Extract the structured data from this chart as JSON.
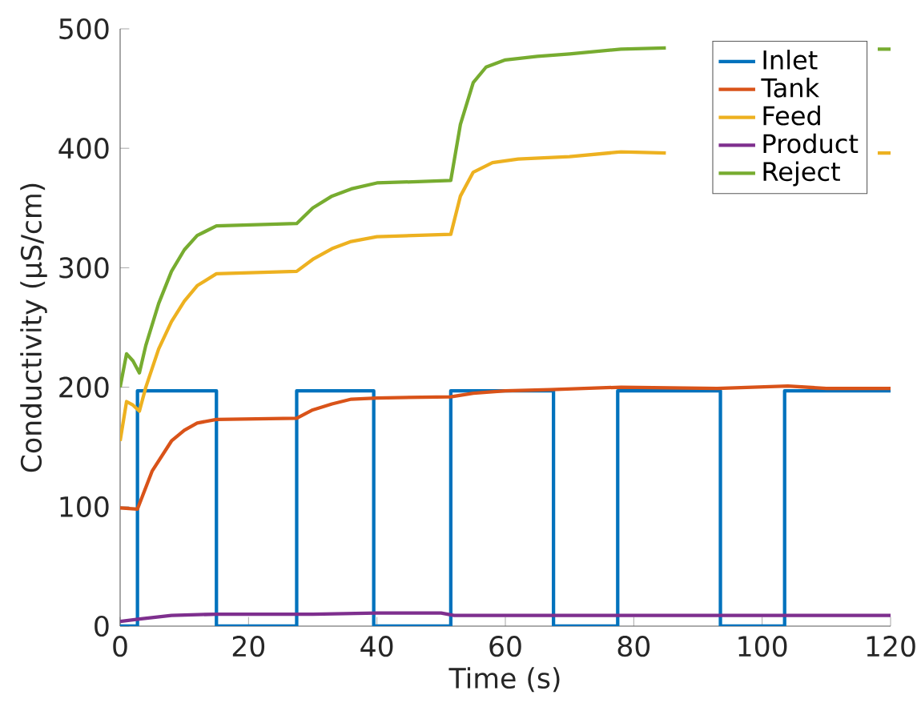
{
  "chart_data": {
    "type": "line",
    "xlabel": "Time (s)",
    "ylabel": "Conductivity (μS/cm)",
    "xlim": [
      0,
      120
    ],
    "ylim": [
      0,
      500
    ],
    "xticks": [
      0,
      20,
      40,
      60,
      80,
      100,
      120
    ],
    "yticks": [
      0,
      100,
      200,
      300,
      400,
      500
    ],
    "legend": "top right",
    "grid": false,
    "series": [
      {
        "name": "Inlet",
        "color": "#0072bd",
        "x": [
          0,
          2.7,
          2.7,
          15,
          15,
          27.5,
          27.5,
          39.5,
          39.5,
          51.5,
          51.5,
          67.5,
          67.5,
          77.5,
          77.5,
          93.5,
          93.5,
          103.5,
          103.5,
          120
        ],
        "values": [
          0,
          0,
          197,
          197,
          0,
          0,
          197,
          197,
          0,
          0,
          197,
          197,
          0,
          0,
          197,
          197,
          0,
          0,
          197,
          197
        ]
      },
      {
        "name": "Tank",
        "color": "#d95319",
        "x": [
          0,
          2.7,
          5,
          8,
          10,
          12,
          15,
          27.5,
          30,
          33,
          36,
          40,
          51.5,
          55,
          60,
          67,
          78,
          93,
          104,
          110,
          120
        ],
        "values": [
          99,
          98,
          130,
          155,
          164,
          170,
          173,
          174,
          181,
          186,
          190,
          191,
          192,
          195,
          197,
          198,
          200,
          199,
          201,
          199,
          199
        ]
      },
      {
        "name": "Feed",
        "color": "#edb120",
        "x": [
          0,
          1,
          2,
          3,
          4,
          6,
          8,
          10,
          12,
          15,
          27.5,
          30,
          33,
          36,
          40,
          51.5,
          53,
          55,
          58,
          62,
          70,
          78,
          85,
          93,
          100,
          110,
          118,
          120
        ],
        "values": [
          155,
          188,
          185,
          180,
          200,
          232,
          255,
          272,
          285,
          295,
          297,
          307,
          316,
          322,
          326,
          328,
          360,
          380,
          388,
          391,
          393,
          397,
          396,
          null,
          null,
          null,
          396,
          396
        ]
      },
      {
        "name": "Product",
        "color": "#7e2f8e",
        "x": [
          0,
          3,
          8,
          15,
          30,
          40,
          50,
          52,
          60,
          120
        ],
        "values": [
          4,
          6,
          9,
          10,
          10,
          11,
          11,
          9,
          9,
          9
        ]
      },
      {
        "name": "Reject",
        "color": "#77ac30",
        "x": [
          0,
          1,
          2,
          3,
          4,
          6,
          8,
          10,
          12,
          15,
          27.5,
          30,
          33,
          36,
          40,
          51.5,
          53,
          55,
          57,
          60,
          65,
          70,
          78,
          85,
          93,
          100,
          104,
          110,
          118,
          120
        ],
        "values": [
          200,
          228,
          222,
          212,
          235,
          270,
          297,
          315,
          327,
          335,
          337,
          350,
          360,
          366,
          371,
          373,
          420,
          455,
          468,
          474,
          477,
          479,
          483,
          484,
          null,
          null,
          null,
          null,
          483,
          483
        ]
      }
    ]
  }
}
